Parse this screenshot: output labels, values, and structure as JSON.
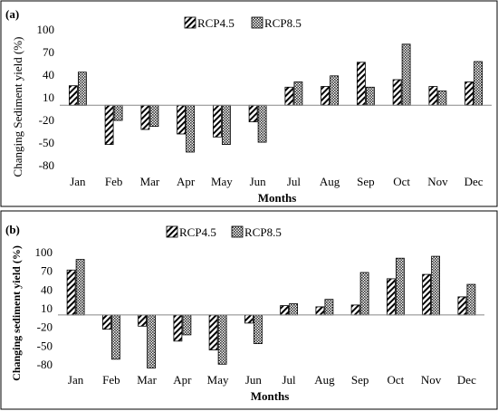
{
  "chart_data": [
    {
      "panel_label": "(a)",
      "type": "bar",
      "categories": [
        "Jan",
        "Feb",
        "Mar",
        "Apr",
        "May",
        "Jun",
        "Jul",
        "Aug",
        "Sep",
        "Oct",
        "Nov",
        "Dec"
      ],
      "series": [
        {
          "name": "RCP4.5",
          "values": [
            26,
            -52,
            -32,
            -38,
            -42,
            -22,
            24,
            25,
            57,
            34,
            25,
            31
          ]
        },
        {
          "name": "RCP8.5",
          "values": [
            44,
            -20,
            -28,
            -62,
            -52,
            -49,
            31,
            39,
            24,
            81,
            19,
            58
          ]
        }
      ],
      "xlabel": "Months",
      "ylabel": "Changing Sediment yield (%)",
      "yticks": [
        100,
        70,
        40,
        10,
        -20,
        -50,
        -80
      ],
      "ylim": [
        -80,
        100
      ],
      "grid": false,
      "legend_position": "top"
    },
    {
      "panel_label": "(b)",
      "type": "bar",
      "categories": [
        "Jan",
        "Feb",
        "Mar",
        "Apr",
        "May",
        "Jun",
        "Jul",
        "Aug",
        "Sep",
        "Oct",
        "Nov",
        "Dec"
      ],
      "series": [
        {
          "name": "RCP4.5",
          "values": [
            72,
            -23,
            -18,
            -42,
            -56,
            -13,
            15,
            13,
            16,
            58,
            65,
            29
          ]
        },
        {
          "name": "RCP8.5",
          "values": [
            89,
            -71,
            -85,
            -32,
            -79,
            -46,
            18,
            25,
            68,
            91,
            94,
            49
          ]
        }
      ],
      "xlabel": "Months",
      "ylabel": "Changing sediment yield (%)",
      "yticks": [
        100,
        70,
        40,
        10,
        -20,
        -50,
        -80
      ],
      "ylim": [
        -80,
        100
      ],
      "grid": false,
      "legend_position": "top-left"
    }
  ]
}
